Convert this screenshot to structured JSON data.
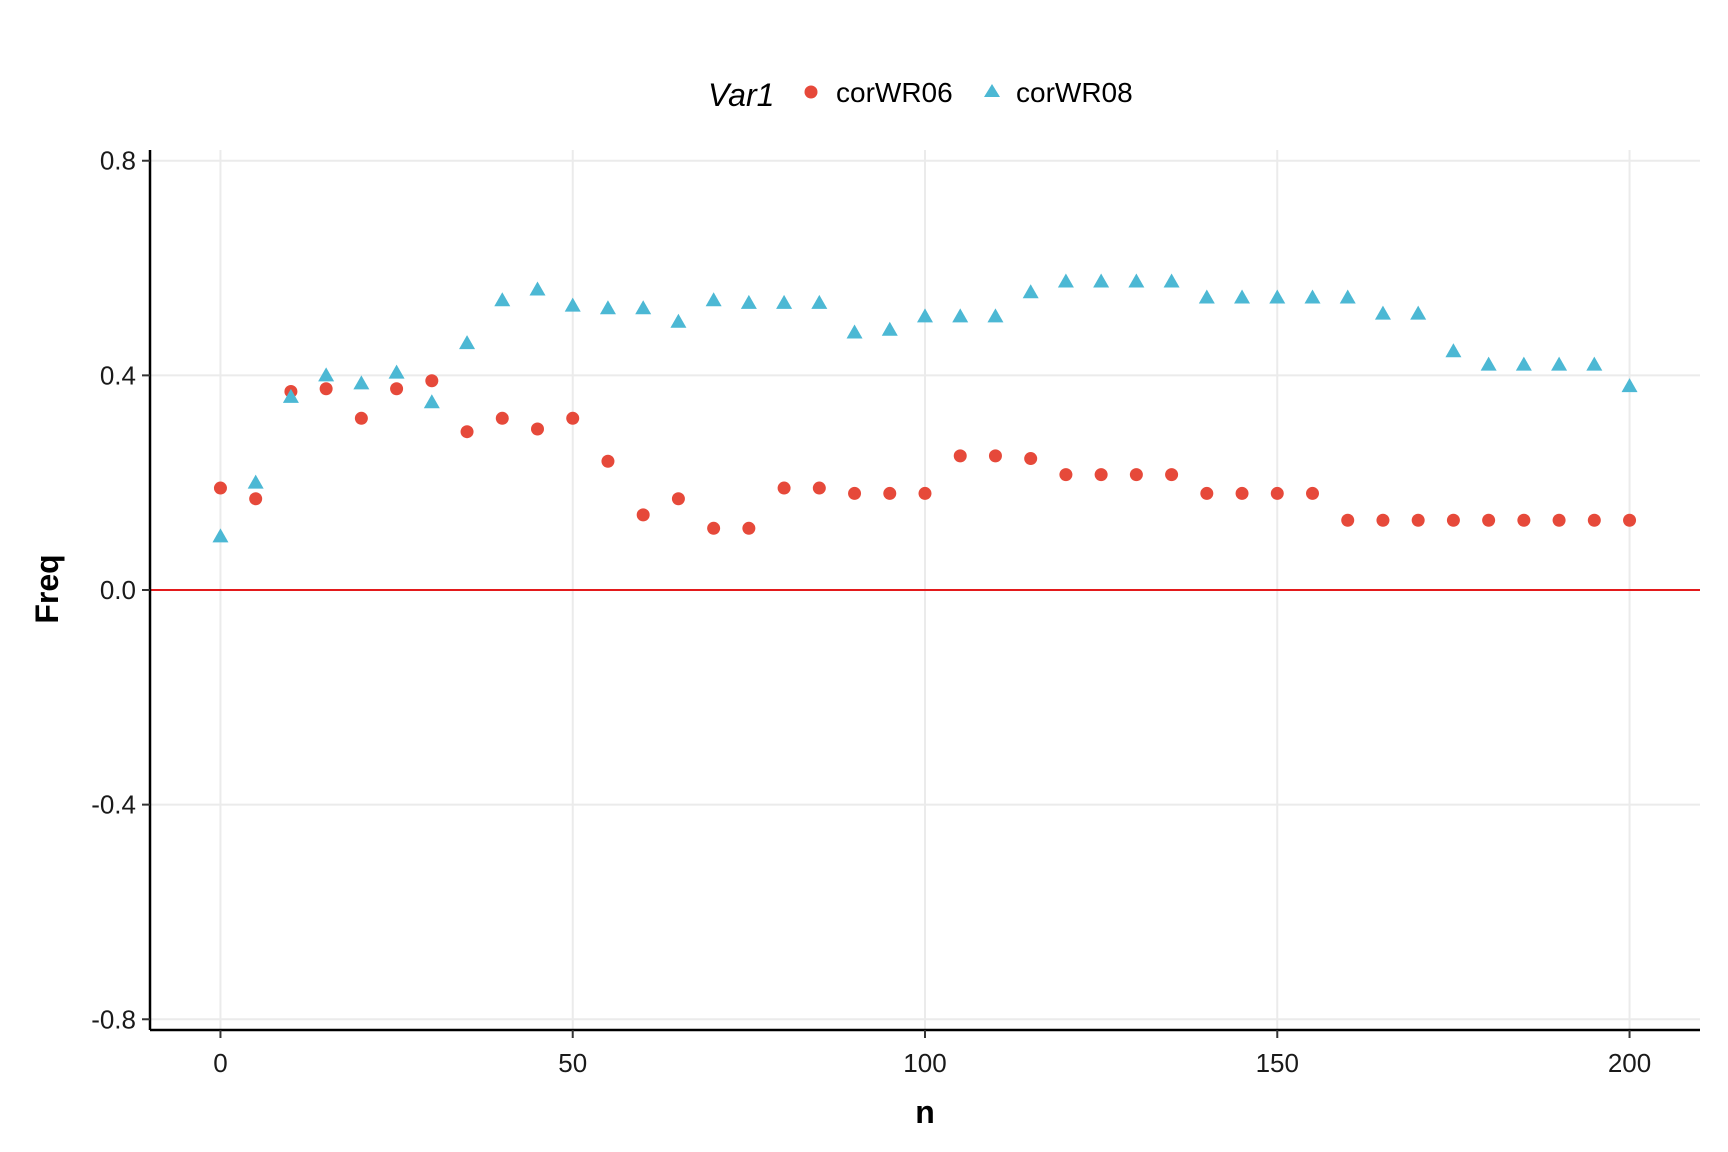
{
  "chart_data": {
    "type": "scatter",
    "xlabel": "n",
    "ylabel": "Freq",
    "xlim": [
      -10,
      210
    ],
    "ylim": [
      -0.82,
      0.82
    ],
    "x_ticks": [
      0,
      50,
      100,
      150,
      200
    ],
    "x_tick_labels": [
      "0",
      "50",
      "100",
      "150",
      "200"
    ],
    "y_ticks": [
      0.8,
      0.4,
      0.0,
      -0.4,
      -0.8
    ],
    "y_tick_labels": [
      "0.8",
      "0.4",
      "0.0",
      "-0.4",
      "-0.8"
    ],
    "grid": true,
    "legend": {
      "title": "Var1",
      "position": "top"
    },
    "reference_line": {
      "y": 0.0,
      "color": "#e31a1c"
    },
    "x": [
      0,
      5,
      10,
      15,
      20,
      25,
      30,
      35,
      40,
      45,
      50,
      55,
      60,
      65,
      70,
      75,
      80,
      85,
      90,
      95,
      100,
      105,
      110,
      115,
      120,
      125,
      130,
      135,
      140,
      145,
      150,
      155,
      160,
      165,
      170,
      175,
      180,
      185,
      190,
      195,
      200
    ],
    "series": [
      {
        "name": "corWR06",
        "shape": "circle",
        "color": "#e6493a",
        "values": [
          0.19,
          0.17,
          0.37,
          0.375,
          0.32,
          0.375,
          0.39,
          0.295,
          0.32,
          0.3,
          0.32,
          0.24,
          0.14,
          0.17,
          0.115,
          0.115,
          0.19,
          0.19,
          0.18,
          0.18,
          0.18,
          0.25,
          0.25,
          0.245,
          0.215,
          0.215,
          0.215,
          0.215,
          0.18,
          0.18,
          0.18,
          0.18,
          0.13,
          0.13,
          0.13,
          0.13,
          0.13,
          0.13,
          0.13,
          0.13,
          0.13
        ]
      },
      {
        "name": "corWR08",
        "shape": "triangle",
        "color": "#4cb8d4",
        "values": [
          0.1,
          0.2,
          0.36,
          0.4,
          0.385,
          0.405,
          0.35,
          0.46,
          0.54,
          0.56,
          0.53,
          0.525,
          0.525,
          0.5,
          0.54,
          0.535,
          0.535,
          0.535,
          0.48,
          0.485,
          0.51,
          0.51,
          0.51,
          0.555,
          0.575,
          0.575,
          0.575,
          0.575,
          0.545,
          0.545,
          0.545,
          0.545,
          0.545,
          0.515,
          0.515,
          0.445,
          0.42,
          0.42,
          0.42,
          0.42,
          0.38
        ]
      }
    ]
  }
}
